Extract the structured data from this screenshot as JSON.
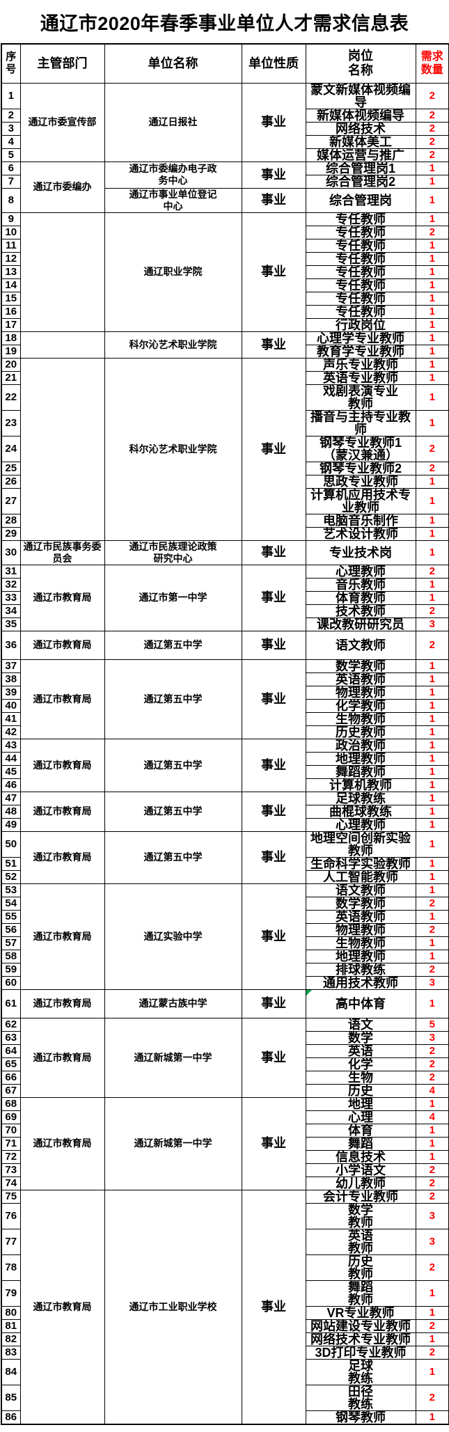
{
  "title": "通辽市2020年春季事业单位人才需求信息表",
  "colors": {
    "demand_text": "#FF0000",
    "grid": "#000000",
    "corner_marker": "#00A650"
  },
  "table": {
    "columns": {
      "no": "序\n号",
      "dept": "主管部门",
      "unit": "单位名称",
      "nature": "单位性质",
      "post": "岗位\n名称",
      "demand": "需求\n数量"
    },
    "blocks": [
      {
        "dept": "通辽市委宣传部",
        "units": [
          {
            "name": "通辽日报社",
            "nature": "事业",
            "rows": [
              {
                "n": "1",
                "post": "蒙文新媒体视频编\n导",
                "count": "2"
              },
              {
                "n": "2",
                "post": "新媒体视频编导",
                "count": "2"
              },
              {
                "n": "3",
                "post": "网络技术",
                "count": "2"
              },
              {
                "n": "4",
                "post": "新媒体美工",
                "count": "2"
              },
              {
                "n": "5",
                "post": "媒体运营与推广",
                "count": "2"
              }
            ]
          }
        ]
      },
      {
        "dept": "通辽市委编办",
        "units": [
          {
            "name": "通辽市委编办电子政\n务中心",
            "nature": "事业",
            "rows": [
              {
                "n": "6",
                "post": "综合管理岗1",
                "count": "1"
              },
              {
                "n": "7",
                "post": "综合管理岗2",
                "count": "1"
              }
            ]
          },
          {
            "name": "通辽市事业单位登记\n中心",
            "nature": "事业",
            "rows": [
              {
                "n": "8",
                "post": "综合管理岗",
                "count": "1"
              }
            ]
          }
        ]
      },
      {
        "dept": "",
        "units": [
          {
            "name": "通辽职业学院",
            "nature": "事业",
            "rows": [
              {
                "n": "9",
                "post": "专任教师",
                "count": "1"
              },
              {
                "n": "10",
                "post": "专任教师",
                "count": "2"
              },
              {
                "n": "11",
                "post": "专任教师",
                "count": "1"
              },
              {
                "n": "12",
                "post": "专任教师",
                "count": "1"
              },
              {
                "n": "13",
                "post": "专任教师",
                "count": "1"
              },
              {
                "n": "14",
                "post": "专任教师",
                "count": "1"
              },
              {
                "n": "15",
                "post": "专任教师",
                "count": "1"
              },
              {
                "n": "16",
                "post": "专任教师",
                "count": "1"
              },
              {
                "n": "17",
                "post": "行政岗位",
                "count": "1"
              }
            ]
          }
        ]
      },
      {
        "dept": "",
        "units": [
          {
            "name": "科尔沁艺术职业学院",
            "nature": "事业",
            "rows": [
              {
                "n": "18",
                "post": "心理学专业教师",
                "count": "1"
              },
              {
                "n": "19",
                "post": "教育学专业教师",
                "count": "1"
              }
            ]
          }
        ]
      },
      {
        "dept": "",
        "units": [
          {
            "name": "科尔沁艺术职业学院",
            "nature": "事业",
            "rows": [
              {
                "n": "20",
                "post": "声乐专业教师",
                "count": "1"
              },
              {
                "n": "21",
                "post": "英语专业教师",
                "count": "1"
              },
              {
                "n": "22",
                "post": "戏剧表演专业\n教师",
                "count": "1"
              },
              {
                "n": "23",
                "post": "播音与主持专业教\n师",
                "count": "1"
              },
              {
                "n": "24",
                "post": "钢琴专业教师1\n（蒙汉兼通）",
                "count": "2"
              },
              {
                "n": "25",
                "post": "钢琴专业教师2",
                "count": "2"
              },
              {
                "n": "26",
                "post": "思政专业教师",
                "count": "1"
              },
              {
                "n": "27",
                "post": "计算机应用技术专\n业教师",
                "count": "1"
              },
              {
                "n": "28",
                "post": "电脑音乐制作",
                "count": "1"
              },
              {
                "n": "29",
                "post": "艺术设计教师",
                "count": "1"
              }
            ]
          }
        ]
      },
      {
        "dept": "通辽市民族事务委\n员会",
        "units": [
          {
            "name": "通辽市民族理论政策\n研究中心",
            "nature": "事业",
            "rows": [
              {
                "n": "30",
                "post": "专业技术岗",
                "count": "1"
              }
            ]
          }
        ]
      },
      {
        "dept": "通辽市教育局",
        "units": [
          {
            "name": "通辽市第一中学",
            "nature": "事业",
            "rows": [
              {
                "n": "31",
                "post": "心理教师",
                "count": "2"
              },
              {
                "n": "32",
                "post": "音乐教师",
                "count": "1"
              },
              {
                "n": "33",
                "post": "体育教师",
                "count": "1"
              },
              {
                "n": "34",
                "post": "技术教师",
                "count": "2"
              },
              {
                "n": "35",
                "post": "课改教研研究员",
                "count": "3"
              }
            ]
          }
        ]
      },
      {
        "dept": "通辽市教育局",
        "units": [
          {
            "name": "通辽第五中学",
            "nature": "事业",
            "rows": [
              {
                "n": "36",
                "post": "语文教师",
                "count": "2",
                "tall": true
              }
            ]
          }
        ]
      },
      {
        "dept": "通辽市教育局",
        "units": [
          {
            "name": "通辽第五中学",
            "nature": "事业",
            "rows": [
              {
                "n": "37",
                "post": "数学教师",
                "count": "1"
              },
              {
                "n": "38",
                "post": "英语教师",
                "count": "1"
              },
              {
                "n": "39",
                "post": "物理教师",
                "count": "1"
              },
              {
                "n": "40",
                "post": "化学教师",
                "count": "1"
              },
              {
                "n": "41",
                "post": "生物教师",
                "count": "1"
              },
              {
                "n": "42",
                "post": "历史教师",
                "count": "1"
              }
            ]
          }
        ]
      },
      {
        "dept": "通辽市教育局",
        "units": [
          {
            "name": "通辽第五中学",
            "nature": "事业",
            "rows": [
              {
                "n": "43",
                "post": "政治教师",
                "count": "1"
              },
              {
                "n": "44",
                "post": "地理教师",
                "count": "1"
              },
              {
                "n": "45",
                "post": "舞蹈教师",
                "count": "1"
              },
              {
                "n": "46",
                "post": "计算机教师",
                "count": "1"
              }
            ]
          }
        ]
      },
      {
        "dept": "通辽市教育局",
        "units": [
          {
            "name": "通辽第五中学",
            "nature": "事业",
            "rows": [
              {
                "n": "47",
                "post": "足球教练",
                "count": "1"
              },
              {
                "n": "48",
                "post": "曲棍球教练",
                "count": "1"
              },
              {
                "n": "49",
                "post": "心理教师",
                "count": "1"
              }
            ]
          }
        ]
      },
      {
        "dept": "通辽市教育局",
        "units": [
          {
            "name": "通辽第五中学",
            "nature": "事业",
            "rows": [
              {
                "n": "50",
                "post": "地理空间创新实验\n教师",
                "count": "1"
              },
              {
                "n": "51",
                "post": "生命科学实验教师",
                "count": "1"
              },
              {
                "n": "52",
                "post": "人工智能教师",
                "count": "1"
              }
            ]
          }
        ]
      },
      {
        "dept": "通辽市教育局",
        "units": [
          {
            "name": "通辽实验中学",
            "nature": "事业",
            "rows": [
              {
                "n": "53",
                "post": "语文教师",
                "count": "1"
              },
              {
                "n": "54",
                "post": "数学教师",
                "count": "2"
              },
              {
                "n": "55",
                "post": "英语教师",
                "count": "1"
              },
              {
                "n": "56",
                "post": "物理教师",
                "count": "2"
              },
              {
                "n": "57",
                "post": "生物教师",
                "count": "1"
              },
              {
                "n": "58",
                "post": "地理教师",
                "count": "1"
              },
              {
                "n": "59",
                "post": "排球教练",
                "count": "2"
              },
              {
                "n": "60",
                "post": "通用技术教师",
                "count": "3"
              }
            ]
          }
        ]
      },
      {
        "dept": "通辽市教育局",
        "units": [
          {
            "name": "通辽蒙古族中学",
            "nature": "事业",
            "rows": [
              {
                "n": "61",
                "post": "高中体育",
                "count": "1",
                "tall": true,
                "marker": "green-corner-triangle"
              }
            ]
          }
        ]
      },
      {
        "dept": "通辽市教育局",
        "units": [
          {
            "name": "通辽新城第一中学",
            "nature": "事业",
            "rows": [
              {
                "n": "62",
                "post": "语文",
                "count": "5"
              },
              {
                "n": "63",
                "post": "数学",
                "count": "3"
              },
              {
                "n": "64",
                "post": "英语",
                "count": "2"
              },
              {
                "n": "65",
                "post": "化学",
                "count": "2"
              },
              {
                "n": "66",
                "post": "生物",
                "count": "2"
              },
              {
                "n": "67",
                "post": "历史",
                "count": "4"
              }
            ]
          }
        ]
      },
      {
        "dept": "通辽市教育局",
        "units": [
          {
            "name": "通辽新城第一中学",
            "nature": "事业",
            "rows": [
              {
                "n": "68",
                "post": "地理",
                "count": "1"
              },
              {
                "n": "69",
                "post": "心理",
                "count": "4"
              },
              {
                "n": "70",
                "post": "体育",
                "count": "1"
              },
              {
                "n": "71",
                "post": "舞蹈",
                "count": "1"
              },
              {
                "n": "72",
                "post": "信息技术",
                "count": "1"
              },
              {
                "n": "73",
                "post": "小学语文",
                "count": "2"
              },
              {
                "n": "74",
                "post": "幼儿教师",
                "count": "2"
              }
            ]
          }
        ]
      },
      {
        "dept": "通辽市教育局",
        "units": [
          {
            "name": "通辽市工业职业学校",
            "nature": "事业",
            "rows": [
              {
                "n": "75",
                "post": "会计专业教师",
                "count": "2"
              },
              {
                "n": "76",
                "post": "数学\n教师",
                "count": "3"
              },
              {
                "n": "77",
                "post": "英语\n教师",
                "count": "3"
              },
              {
                "n": "78",
                "post": "历史\n教师",
                "count": "2"
              },
              {
                "n": "79",
                "post": "舞蹈\n教师",
                "count": "1"
              },
              {
                "n": "80",
                "post": "VR专业教师",
                "count": "1"
              },
              {
                "n": "81",
                "post": "网站建设专业教师",
                "count": "2"
              },
              {
                "n": "82",
                "post": "网络技术专业教师",
                "count": "1"
              },
              {
                "n": "83",
                "post": "3D打印专业教师",
                "count": "2"
              },
              {
                "n": "84",
                "post": "足球\n教练",
                "count": "1"
              },
              {
                "n": "85",
                "post": "田径\n教练",
                "count": "2"
              },
              {
                "n": "86",
                "post": "钢琴教师",
                "count": "1"
              }
            ]
          }
        ]
      }
    ]
  }
}
